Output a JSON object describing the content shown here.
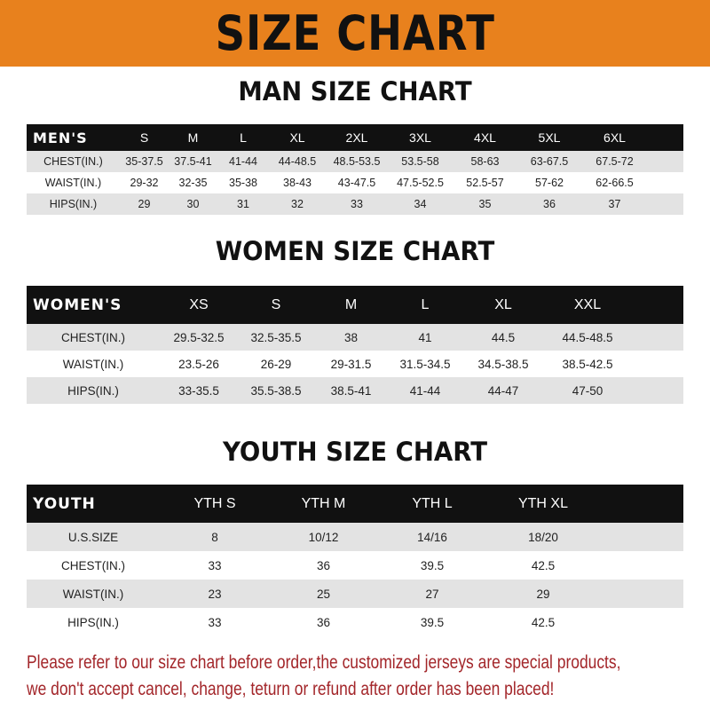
{
  "title": "SIZE CHART",
  "colors": {
    "banner": "#e8811d",
    "header_row": "#111111",
    "stripe": "#e3e3e3",
    "note": "#a3262a"
  },
  "men": {
    "title": "MAN SIZE CHART",
    "header": [
      "MEN'S",
      "S",
      "M",
      "L",
      "XL",
      "2XL",
      "3XL",
      "4XL",
      "5XL",
      "6XL"
    ],
    "rows": [
      [
        "CHEST(IN.)",
        "35-37.5",
        "37.5-41",
        "41-44",
        "44-48.5",
        "48.5-53.5",
        "53.5-58",
        "58-63",
        "63-67.5",
        "67.5-72"
      ],
      [
        "WAIST(IN.)",
        "29-32",
        "32-35",
        "35-38",
        "38-43",
        "43-47.5",
        "47.5-52.5",
        "52.5-57",
        "57-62",
        "62-66.5"
      ],
      [
        "HIPS(IN.)",
        "29",
        "30",
        "31",
        "32",
        "33",
        "34",
        "35",
        "36",
        "37"
      ]
    ]
  },
  "women": {
    "title": "WOMEN SIZE CHART",
    "header": [
      "WOMEN'S",
      "XS",
      "S",
      "M",
      "L",
      "XL",
      "XXL"
    ],
    "rows": [
      [
        "CHEST(IN.)",
        "29.5-32.5",
        "32.5-35.5",
        "38",
        "41",
        "44.5",
        "44.5-48.5"
      ],
      [
        "WAIST(IN.)",
        "23.5-26",
        "26-29",
        "29-31.5",
        "31.5-34.5",
        "34.5-38.5",
        "38.5-42.5"
      ],
      [
        "HIPS(IN.)",
        "33-35.5",
        "35.5-38.5",
        "38.5-41",
        "41-44",
        "44-47",
        "47-50"
      ]
    ]
  },
  "youth": {
    "title": "YOUTH SIZE CHART",
    "header": [
      "YOUTH",
      "YTH S",
      "YTH M",
      "YTH L",
      "YTH XL"
    ],
    "rows": [
      [
        "U.S.SIZE",
        "8",
        "10/12",
        "14/16",
        "18/20"
      ],
      [
        "CHEST(IN.)",
        "33",
        "36",
        "39.5",
        "42.5"
      ],
      [
        "WAIST(IN.)",
        "23",
        "25",
        "27",
        "29"
      ],
      [
        "HIPS(IN.)",
        "33",
        "36",
        "39.5",
        "42.5"
      ]
    ]
  },
  "note": {
    "line1": "Please refer to our size chart before order,the customized jerseys are special products,",
    "line2": "we don't accept cancel, change, teturn or refund after order has been placed!"
  }
}
